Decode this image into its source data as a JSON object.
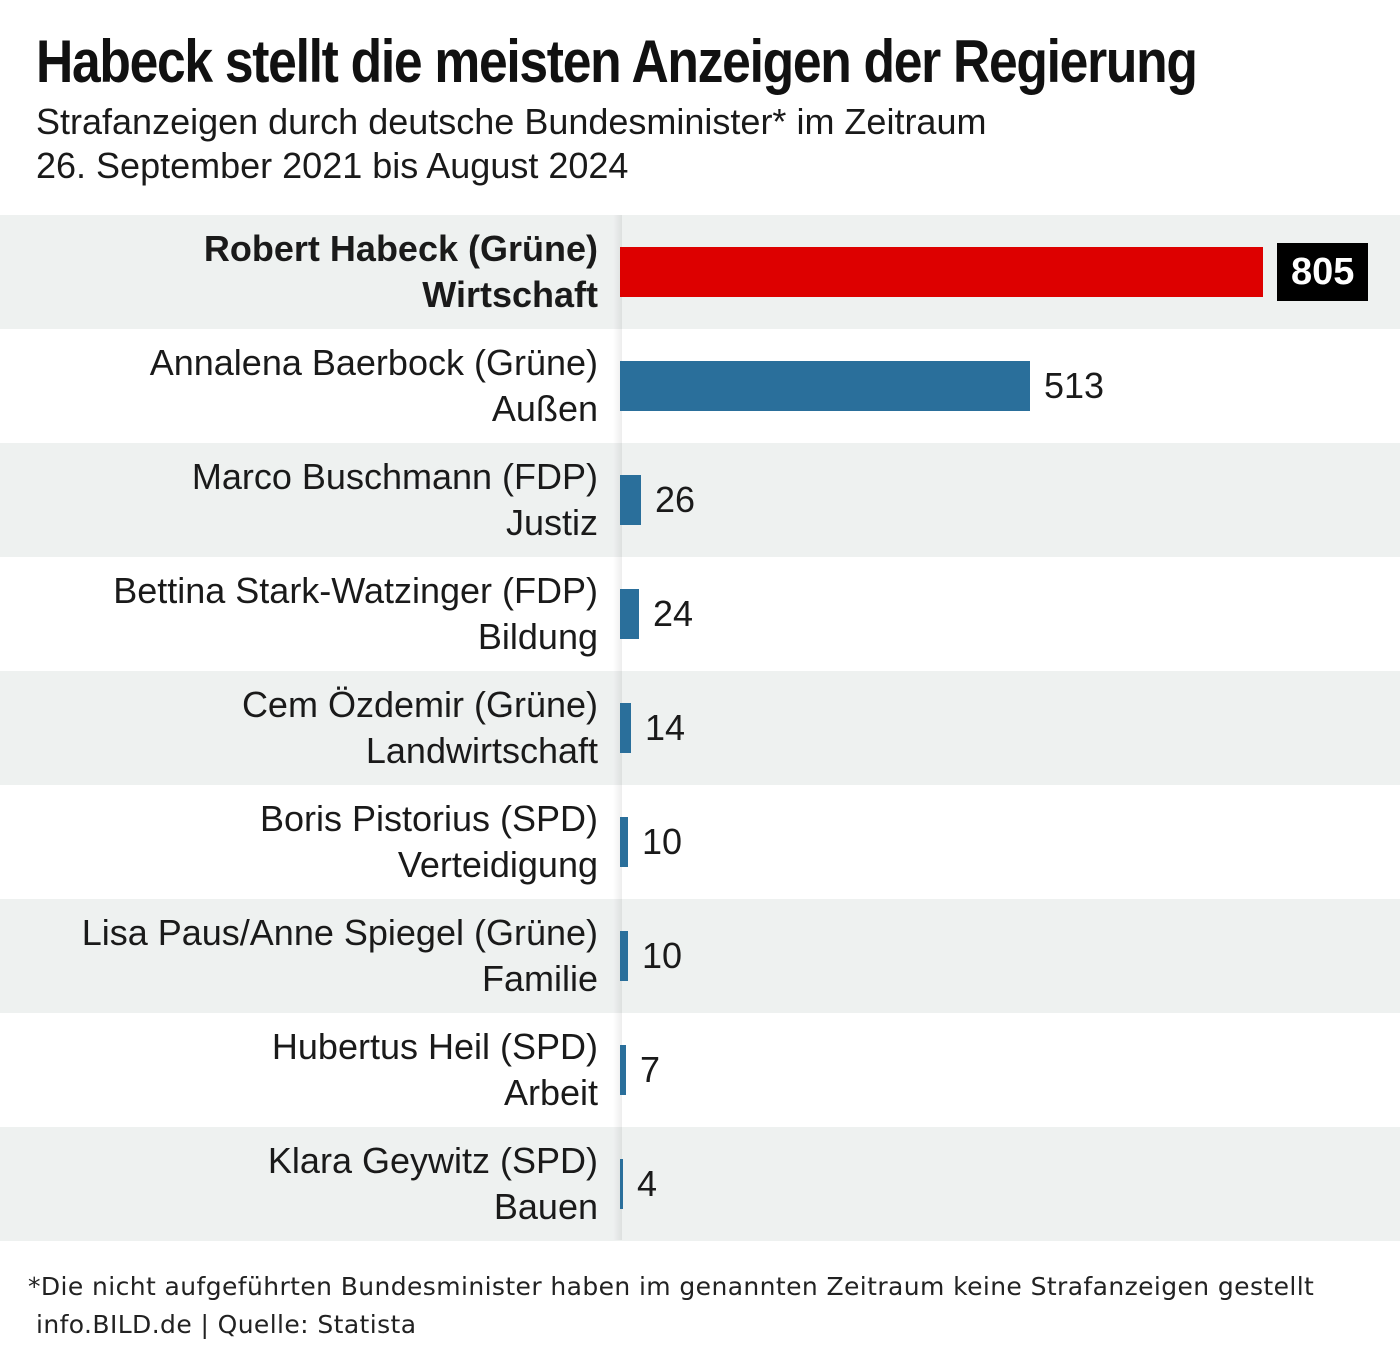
{
  "chart_data": {
    "type": "bar",
    "orientation": "horizontal",
    "title": "Habeck stellt die meisten Anzeigen der Regierung",
    "subtitle": [
      "Strafanzeigen durch deutsche Bundesminister* im Zeitraum",
      "26. September 2021 bis August 2024"
    ],
    "categories": [
      {
        "name": "Robert Habeck (Grüne)",
        "ministry": "Wirtschaft",
        "value": 805,
        "highlight": true
      },
      {
        "name": "Annalena Baerbock (Grüne)",
        "ministry": "Außen",
        "value": 513,
        "highlight": false
      },
      {
        "name": "Marco Buschmann (FDP)",
        "ministry": "Justiz",
        "value": 26,
        "highlight": false
      },
      {
        "name": "Bettina Stark-Watzinger (FDP)",
        "ministry": "Bildung",
        "value": 24,
        "highlight": false
      },
      {
        "name": "Cem Özdemir (Grüne)",
        "ministry": "Landwirtschaft",
        "value": 14,
        "highlight": false
      },
      {
        "name": "Boris Pistorius (SPD)",
        "ministry": "Verteidigung",
        "value": 10,
        "highlight": false
      },
      {
        "name": "Lisa Paus/Anne Spiegel (Grüne)",
        "ministry": "Familie",
        "value": 10,
        "highlight": false
      },
      {
        "name": "Hubertus Heil (SPD)",
        "ministry": "Arbeit",
        "value": 7,
        "highlight": false
      },
      {
        "name": "Klara Geywitz (SPD)",
        "ministry": "Bauen",
        "value": 4,
        "highlight": false
      }
    ],
    "xlim": [
      0,
      805
    ],
    "colors": {
      "highlight": "#dd0000",
      "bar": "#2a6f9b",
      "value_box": "#000000",
      "row_alt": "#eef1f0"
    },
    "grid": false,
    "legend": "none"
  },
  "footnote": "*Die nicht aufgeführten Bundesminister haben im genannten Zeitraum keine Strafanzeigen gestellt",
  "source": "info.BILD.de | Quelle: Statista"
}
